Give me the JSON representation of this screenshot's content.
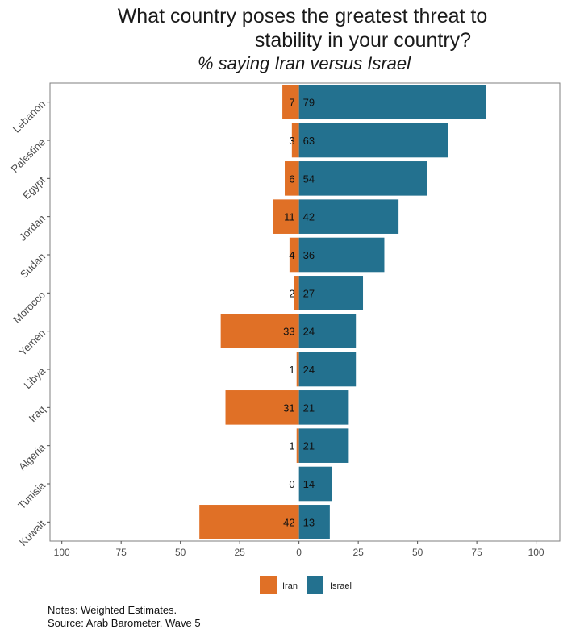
{
  "title_lines": [
    "What country poses the greatest threat to",
    "stability in your country?"
  ],
  "subtitle": "% saying Iran versus Israel",
  "notes": "Notes: Weighted Estimates.",
  "source": "Source: Arab Barometer, Wave 5",
  "colors": {
    "iran": "#e07026",
    "israel": "#23718f",
    "frame": "#7f7f7f",
    "tick": "#4d4d4d"
  },
  "chart_data": {
    "type": "bar",
    "orientation": "horizontal-diverging",
    "title": "What country poses the greatest threat to stability in your country?",
    "subtitle": "% saying Iran versus Israel",
    "categories": [
      "Lebanon",
      "Palestine",
      "Egypt",
      "Jordan",
      "Sudan",
      "Morocco",
      "Yemen",
      "Libya",
      "Iraq",
      "Algeria",
      "Tunisia",
      "Kuwait"
    ],
    "series": [
      {
        "name": "Iran",
        "values": [
          7,
          3,
          6,
          11,
          4,
          2,
          33,
          1,
          31,
          1,
          0,
          42
        ],
        "direction": "left"
      },
      {
        "name": "Israel",
        "values": [
          79,
          63,
          54,
          42,
          36,
          27,
          24,
          24,
          21,
          21,
          14,
          13
        ],
        "direction": "right"
      }
    ],
    "xlim": [
      -105,
      110
    ],
    "xticks": [
      -100,
      -75,
      -50,
      -25,
      0,
      25,
      50,
      75,
      100
    ],
    "xtick_labels": [
      "100",
      "75",
      "50",
      "25",
      "0",
      "25",
      "50",
      "75",
      "100"
    ],
    "xlabel": "",
    "ylabel": "",
    "legend_position": "bottom",
    "grid": false
  }
}
